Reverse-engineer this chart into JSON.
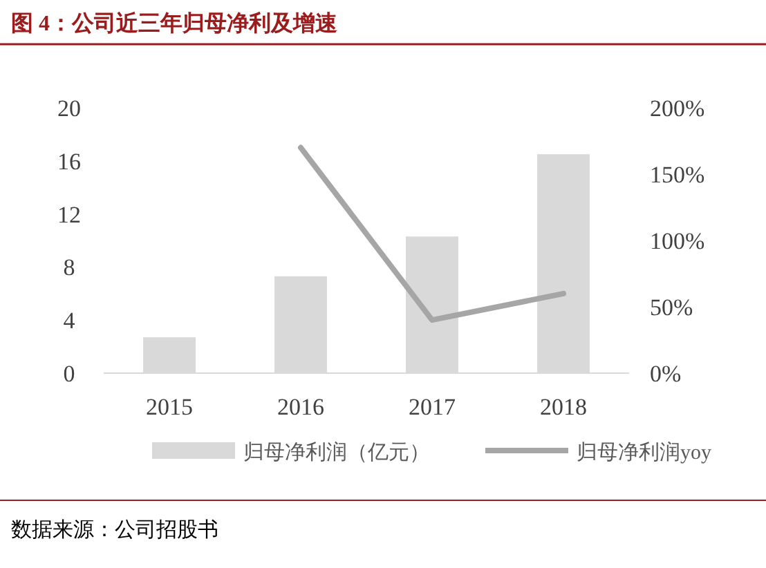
{
  "chart_data": {
    "type": "bar",
    "title": "图 4：公司近三年归母净利及增速",
    "categories": [
      "2015",
      "2016",
      "2017",
      "2018"
    ],
    "series": [
      {
        "name": "归母净利润（亿元）",
        "color": "#d9d9d9",
        "values": [
          2.7,
          7.3,
          10.3,
          16.5
        ]
      },
      {
        "name": "归母净利润yoy",
        "type": "line",
        "axis": "y2",
        "color": "#a6a6a6",
        "values": [
          null,
          170,
          40,
          60
        ]
      }
    ],
    "ylim": [
      0,
      20
    ],
    "yticks": [
      0,
      4,
      8,
      12,
      16,
      20
    ],
    "y2lim": [
      0,
      200
    ],
    "y2ticks": [
      {
        "value": 0,
        "label": "0%"
      },
      {
        "value": 50,
        "label": "50%"
      },
      {
        "value": 100,
        "label": "100%"
      },
      {
        "value": 150,
        "label": "150%"
      },
      {
        "value": 200,
        "label": "200%"
      }
    ],
    "grid": false,
    "legend": "bottom",
    "annotations": [
      "数据来源：公司招股书"
    ]
  }
}
